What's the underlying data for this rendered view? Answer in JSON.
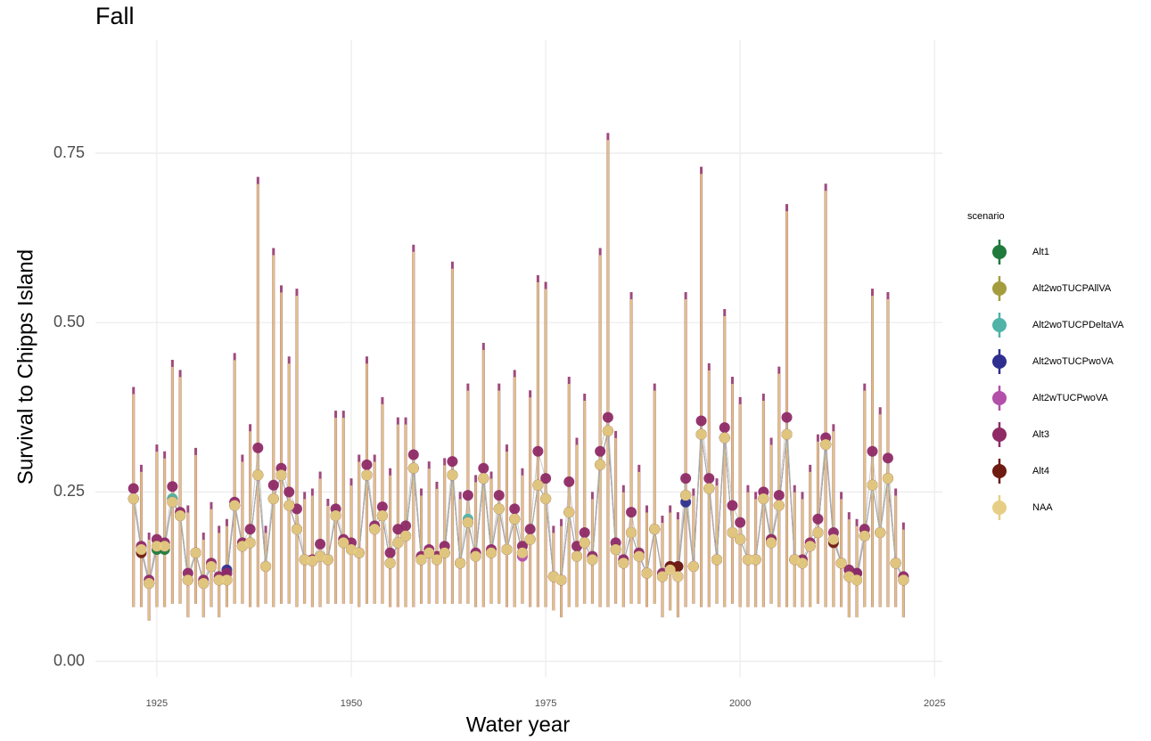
{
  "chart_data": {
    "type": "errorbar-line",
    "title": "Fall",
    "x_label": "Water year",
    "y_label": "Survival to Chipps Island",
    "legend_title": "scenario",
    "legend": "right",
    "grid": true,
    "line_color": "#a8a8a8",
    "xlim": [
      1917.1,
      2026
    ],
    "xticks": [
      1925,
      1950,
      1975,
      2000,
      2025
    ],
    "ylim": [
      -0.023,
      0.917
    ],
    "yticks": [
      {
        "value": 0,
        "label": "0.00"
      },
      {
        "value": 0.25,
        "label": "0.25"
      },
      {
        "value": 0.5,
        "label": "0.50"
      },
      {
        "value": 0.75,
        "label": "0.75"
      }
    ],
    "x": [
      1922,
      1923,
      1924,
      1925,
      1926,
      1927,
      1928,
      1929,
      1930,
      1931,
      1932,
      1933,
      1934,
      1935,
      1936,
      1937,
      1938,
      1939,
      1940,
      1941,
      1942,
      1943,
      1944,
      1945,
      1946,
      1947,
      1948,
      1949,
      1950,
      1951,
      1952,
      1953,
      1954,
      1955,
      1956,
      1957,
      1958,
      1959,
      1960,
      1961,
      1962,
      1963,
      1964,
      1965,
      1966,
      1967,
      1968,
      1969,
      1970,
      1971,
      1972,
      1973,
      1974,
      1975,
      1976,
      1977,
      1978,
      1979,
      1980,
      1981,
      1982,
      1983,
      1984,
      1985,
      1986,
      1987,
      1988,
      1989,
      1990,
      1991,
      1992,
      1993,
      1994,
      1995,
      1996,
      1997,
      1998,
      1999,
      2000,
      2001,
      2002,
      2003,
      2004,
      2005,
      2006,
      2007,
      2008,
      2009,
      2010,
      2011,
      2012,
      2013,
      2014,
      2015,
      2016,
      2017,
      2018,
      2019,
      2020,
      2021
    ],
    "series": [
      {
        "name": "Alt1",
        "color": "#1f7a3c",
        "values": [
          0.24,
          0.165,
          0.115,
          0.165,
          0.165,
          0.24,
          0.215,
          0.12,
          0.16,
          0.115,
          0.14,
          0.12,
          0.12,
          0.23,
          0.17,
          0.175,
          0.275,
          0.14,
          0.24,
          0.275,
          0.23,
          0.195,
          0.15,
          0.148,
          0.155,
          0.15,
          0.215,
          0.175,
          0.165,
          0.16,
          0.275,
          0.195,
          0.215,
          0.145,
          0.175,
          0.185,
          0.285,
          0.15,
          0.16,
          0.15,
          0.16,
          0.275,
          0.145,
          0.205,
          0.155,
          0.27,
          0.16,
          0.225,
          0.165,
          0.21,
          0.16,
          0.18,
          0.26,
          0.24,
          0.125,
          0.12,
          0.22,
          0.155,
          0.175,
          0.15,
          0.29,
          0.34,
          0.165,
          0.145,
          0.19,
          0.155,
          0.13,
          0.195,
          0.125,
          0.135,
          0.125,
          0.245,
          0.14,
          0.335,
          0.255,
          0.15,
          0.33,
          0.19,
          0.18,
          0.15,
          0.15,
          0.24,
          0.18,
          0.23,
          0.335,
          0.15,
          0.145,
          0.17,
          0.19,
          0.32,
          0.18,
          0.145,
          0.125,
          0.12,
          0.185,
          0.26,
          0.19,
          0.27,
          0.145,
          0.12
        ]
      },
      {
        "name": "Alt2woTUCPAllVA",
        "color": "#a59c3e",
        "values": [
          0.24,
          0.165,
          0.115,
          0.17,
          0.17,
          0.24,
          0.215,
          0.12,
          0.16,
          0.115,
          0.14,
          0.12,
          0.12,
          0.23,
          0.17,
          0.175,
          0.275,
          0.14,
          0.24,
          0.275,
          0.23,
          0.195,
          0.15,
          0.148,
          0.155,
          0.15,
          0.215,
          0.175,
          0.165,
          0.16,
          0.275,
          0.195,
          0.215,
          0.145,
          0.175,
          0.185,
          0.285,
          0.15,
          0.16,
          0.15,
          0.16,
          0.275,
          0.145,
          0.205,
          0.155,
          0.27,
          0.16,
          0.225,
          0.165,
          0.21,
          0.16,
          0.18,
          0.26,
          0.24,
          0.125,
          0.12,
          0.22,
          0.155,
          0.175,
          0.15,
          0.29,
          0.34,
          0.165,
          0.145,
          0.19,
          0.155,
          0.13,
          0.195,
          0.125,
          0.135,
          0.125,
          0.245,
          0.14,
          0.335,
          0.255,
          0.15,
          0.33,
          0.19,
          0.18,
          0.15,
          0.15,
          0.24,
          0.18,
          0.23,
          0.335,
          0.15,
          0.145,
          0.17,
          0.19,
          0.32,
          0.18,
          0.145,
          0.125,
          0.12,
          0.185,
          0.26,
          0.19,
          0.27,
          0.145,
          0.12
        ]
      },
      {
        "name": "Alt2woTUCPDeltaVA",
        "color": "#4fb3a8",
        "values": [
          0.24,
          0.165,
          0.115,
          0.17,
          0.17,
          0.24,
          0.215,
          0.12,
          0.16,
          0.115,
          0.14,
          0.12,
          0.12,
          0.23,
          0.17,
          0.175,
          0.275,
          0.14,
          0.24,
          0.275,
          0.23,
          0.195,
          0.15,
          0.148,
          0.155,
          0.15,
          0.215,
          0.175,
          0.165,
          0.16,
          0.275,
          0.195,
          0.215,
          0.145,
          0.175,
          0.185,
          0.285,
          0.15,
          0.16,
          0.15,
          0.16,
          0.275,
          0.145,
          0.21,
          0.155,
          0.27,
          0.16,
          0.225,
          0.165,
          0.21,
          0.16,
          0.18,
          0.26,
          0.24,
          0.125,
          0.12,
          0.22,
          0.155,
          0.175,
          0.15,
          0.29,
          0.34,
          0.165,
          0.145,
          0.19,
          0.155,
          0.13,
          0.195,
          0.125,
          0.135,
          0.125,
          0.245,
          0.14,
          0.335,
          0.255,
          0.15,
          0.33,
          0.19,
          0.18,
          0.15,
          0.15,
          0.24,
          0.175,
          0.23,
          0.335,
          0.15,
          0.145,
          0.17,
          0.19,
          0.32,
          0.18,
          0.145,
          0.125,
          0.12,
          0.185,
          0.26,
          0.19,
          0.27,
          0.145,
          0.12
        ]
      },
      {
        "name": "Alt2woTUCPwoVA",
        "color": "#2f2f8f",
        "values": [
          0.24,
          0.165,
          0.115,
          0.17,
          0.17,
          0.235,
          0.215,
          0.12,
          0.16,
          0.115,
          0.14,
          0.12,
          0.135,
          0.23,
          0.17,
          0.175,
          0.275,
          0.14,
          0.24,
          0.275,
          0.23,
          0.195,
          0.15,
          0.148,
          0.155,
          0.15,
          0.215,
          0.175,
          0.165,
          0.16,
          0.275,
          0.195,
          0.215,
          0.145,
          0.175,
          0.185,
          0.285,
          0.15,
          0.16,
          0.15,
          0.16,
          0.275,
          0.145,
          0.205,
          0.155,
          0.27,
          0.16,
          0.225,
          0.165,
          0.21,
          0.16,
          0.18,
          0.26,
          0.24,
          0.125,
          0.12,
          0.22,
          0.155,
          0.175,
          0.15,
          0.29,
          0.34,
          0.165,
          0.145,
          0.19,
          0.155,
          0.13,
          0.195,
          0.125,
          0.14,
          0.125,
          0.235,
          0.14,
          0.335,
          0.255,
          0.15,
          0.33,
          0.19,
          0.18,
          0.15,
          0.15,
          0.24,
          0.175,
          0.23,
          0.335,
          0.15,
          0.145,
          0.17,
          0.19,
          0.32,
          0.18,
          0.145,
          0.125,
          0.13,
          0.185,
          0.26,
          0.19,
          0.27,
          0.145,
          0.12
        ]
      },
      {
        "name": "Alt2wTUCPwoVA",
        "color": "#b24fa9",
        "values": [
          0.24,
          0.165,
          0.115,
          0.17,
          0.17,
          0.235,
          0.215,
          0.12,
          0.16,
          0.115,
          0.14,
          0.12,
          0.12,
          0.23,
          0.17,
          0.175,
          0.275,
          0.14,
          0.24,
          0.275,
          0.23,
          0.195,
          0.15,
          0.148,
          0.155,
          0.15,
          0.215,
          0.175,
          0.165,
          0.16,
          0.275,
          0.195,
          0.215,
          0.145,
          0.175,
          0.185,
          0.285,
          0.15,
          0.16,
          0.15,
          0.16,
          0.275,
          0.145,
          0.205,
          0.155,
          0.27,
          0.16,
          0.225,
          0.165,
          0.21,
          0.155,
          0.18,
          0.26,
          0.24,
          0.125,
          0.12,
          0.22,
          0.155,
          0.175,
          0.15,
          0.29,
          0.34,
          0.165,
          0.145,
          0.19,
          0.155,
          0.13,
          0.195,
          0.125,
          0.135,
          0.125,
          0.245,
          0.14,
          0.335,
          0.255,
          0.15,
          0.33,
          0.19,
          0.18,
          0.15,
          0.15,
          0.24,
          0.175,
          0.23,
          0.335,
          0.15,
          0.145,
          0.17,
          0.19,
          0.32,
          0.18,
          0.145,
          0.125,
          0.12,
          0.185,
          0.26,
          0.19,
          0.27,
          0.145,
          0.12
        ]
      },
      {
        "name": "Alt3",
        "color": "#8e2a66",
        "values": [
          0.255,
          0.17,
          0.12,
          0.18,
          0.175,
          0.258,
          0.22,
          0.13,
          0.16,
          0.12,
          0.145,
          0.125,
          0.13,
          0.235,
          0.175,
          0.195,
          0.315,
          0.14,
          0.26,
          0.285,
          0.25,
          0.225,
          0.15,
          0.15,
          0.173,
          0.15,
          0.225,
          0.18,
          0.175,
          0.16,
          0.29,
          0.2,
          0.228,
          0.16,
          0.195,
          0.2,
          0.305,
          0.155,
          0.165,
          0.155,
          0.17,
          0.295,
          0.145,
          0.245,
          0.16,
          0.285,
          0.165,
          0.245,
          0.165,
          0.225,
          0.17,
          0.195,
          0.31,
          0.27,
          0.125,
          0.12,
          0.265,
          0.17,
          0.19,
          0.155,
          0.31,
          0.36,
          0.175,
          0.15,
          0.22,
          0.16,
          0.13,
          0.195,
          0.13,
          0.14,
          0.14,
          0.27,
          0.14,
          0.355,
          0.27,
          0.15,
          0.345,
          0.23,
          0.205,
          0.15,
          0.15,
          0.25,
          0.18,
          0.245,
          0.36,
          0.15,
          0.15,
          0.175,
          0.21,
          0.33,
          0.19,
          0.145,
          0.135,
          0.13,
          0.195,
          0.31,
          0.19,
          0.3,
          0.145,
          0.125
        ],
        "lower": [
          0.08,
          0.08,
          0.06,
          0.08,
          0.08,
          0.085,
          0.085,
          0.065,
          0.085,
          0.065,
          0.08,
          0.065,
          0.08,
          0.085,
          0.085,
          0.08,
          0.08,
          0.085,
          0.08,
          0.085,
          0.085,
          0.08,
          0.085,
          0.08,
          0.08,
          0.085,
          0.085,
          0.085,
          0.085,
          0.08,
          0.085,
          0.085,
          0.085,
          0.08,
          0.08,
          0.08,
          0.08,
          0.085,
          0.085,
          0.085,
          0.085,
          0.085,
          0.085,
          0.085,
          0.08,
          0.08,
          0.085,
          0.085,
          0.08,
          0.08,
          0.085,
          0.08,
          0.08,
          0.08,
          0.075,
          0.065,
          0.08,
          0.08,
          0.085,
          0.085,
          0.08,
          0.08,
          0.085,
          0.08,
          0.085,
          0.085,
          0.08,
          0.085,
          0.065,
          0.075,
          0.065,
          0.08,
          0.085,
          0.08,
          0.08,
          0.085,
          0.08,
          0.085,
          0.08,
          0.08,
          0.08,
          0.08,
          0.085,
          0.08,
          0.08,
          0.08,
          0.08,
          0.08,
          0.085,
          0.08,
          0.08,
          0.08,
          0.065,
          0.065,
          0.08,
          0.08,
          0.08,
          0.08,
          0.08,
          0.065
        ],
        "upper": [
          0.405,
          0.29,
          0.19,
          0.32,
          0.31,
          0.445,
          0.43,
          0.23,
          0.315,
          0.19,
          0.235,
          0.2,
          0.21,
          0.455,
          0.305,
          0.35,
          0.715,
          0.2,
          0.61,
          0.555,
          0.45,
          0.55,
          0.25,
          0.255,
          0.28,
          0.24,
          0.37,
          0.37,
          0.27,
          0.305,
          0.45,
          0.305,
          0.39,
          0.285,
          0.36,
          0.36,
          0.615,
          0.255,
          0.295,
          0.265,
          0.3,
          0.59,
          0.25,
          0.41,
          0.275,
          0.47,
          0.28,
          0.41,
          0.32,
          0.43,
          0.285,
          0.4,
          0.57,
          0.56,
          0.2,
          0.21,
          0.42,
          0.33,
          0.395,
          0.25,
          0.61,
          0.78,
          0.34,
          0.26,
          0.545,
          0.29,
          0.23,
          0.41,
          0.215,
          0.23,
          0.22,
          0.545,
          0.255,
          0.73,
          0.44,
          0.27,
          0.52,
          0.42,
          0.39,
          0.26,
          0.25,
          0.395,
          0.33,
          0.435,
          0.675,
          0.26,
          0.25,
          0.29,
          0.335,
          0.705,
          0.35,
          0.25,
          0.22,
          0.21,
          0.41,
          0.55,
          0.375,
          0.545,
          0.255,
          0.205
        ]
      },
      {
        "name": "Alt4",
        "color": "#6e1b12",
        "values": [
          0.24,
          0.16,
          0.115,
          0.17,
          0.17,
          0.235,
          0.215,
          0.12,
          0.16,
          0.115,
          0.14,
          0.12,
          0.12,
          0.23,
          0.17,
          0.175,
          0.275,
          0.14,
          0.24,
          0.275,
          0.23,
          0.195,
          0.15,
          0.148,
          0.155,
          0.15,
          0.215,
          0.175,
          0.165,
          0.16,
          0.275,
          0.195,
          0.215,
          0.145,
          0.175,
          0.185,
          0.285,
          0.15,
          0.16,
          0.15,
          0.16,
          0.275,
          0.145,
          0.205,
          0.155,
          0.27,
          0.16,
          0.225,
          0.165,
          0.21,
          0.16,
          0.18,
          0.26,
          0.24,
          0.125,
          0.12,
          0.22,
          0.155,
          0.175,
          0.15,
          0.29,
          0.34,
          0.165,
          0.145,
          0.19,
          0.155,
          0.13,
          0.195,
          0.125,
          0.14,
          0.14,
          0.245,
          0.14,
          0.335,
          0.255,
          0.15,
          0.33,
          0.19,
          0.18,
          0.15,
          0.15,
          0.24,
          0.175,
          0.23,
          0.335,
          0.15,
          0.145,
          0.17,
          0.19,
          0.32,
          0.175,
          0.145,
          0.125,
          0.12,
          0.185,
          0.26,
          0.19,
          0.27,
          0.145,
          0.12
        ]
      },
      {
        "name": "NAA",
        "color": "#e6cf85",
        "values": [
          0.24,
          0.165,
          0.115,
          0.17,
          0.17,
          0.235,
          0.215,
          0.12,
          0.16,
          0.115,
          0.14,
          0.12,
          0.12,
          0.23,
          0.17,
          0.175,
          0.275,
          0.14,
          0.24,
          0.275,
          0.23,
          0.195,
          0.15,
          0.148,
          0.155,
          0.15,
          0.215,
          0.175,
          0.165,
          0.16,
          0.275,
          0.195,
          0.215,
          0.145,
          0.175,
          0.185,
          0.285,
          0.15,
          0.16,
          0.15,
          0.16,
          0.275,
          0.145,
          0.205,
          0.155,
          0.27,
          0.16,
          0.225,
          0.165,
          0.21,
          0.16,
          0.18,
          0.26,
          0.24,
          0.125,
          0.12,
          0.22,
          0.155,
          0.175,
          0.15,
          0.29,
          0.34,
          0.165,
          0.145,
          0.19,
          0.155,
          0.13,
          0.195,
          0.125,
          0.135,
          0.125,
          0.245,
          0.14,
          0.335,
          0.255,
          0.15,
          0.33,
          0.19,
          0.18,
          0.15,
          0.15,
          0.24,
          0.175,
          0.23,
          0.335,
          0.15,
          0.145,
          0.17,
          0.19,
          0.32,
          0.18,
          0.145,
          0.125,
          0.12,
          0.185,
          0.26,
          0.19,
          0.27,
          0.145,
          0.12
        ]
      }
    ]
  }
}
